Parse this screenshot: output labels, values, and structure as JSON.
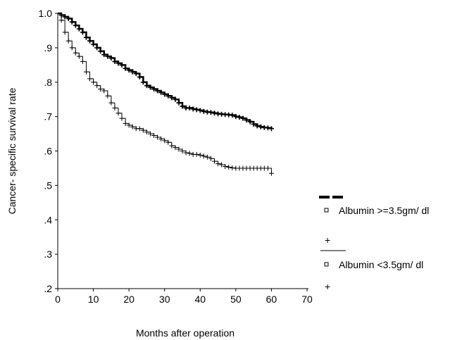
{
  "chart_data": {
    "type": "line",
    "subtype": "kaplan-meier-step",
    "title": "",
    "xlabel": "Months after operation",
    "ylabel": "Cancer- specific survival rate",
    "xlim": [
      0,
      70
    ],
    "ylim": [
      0.2,
      1.0
    ],
    "x_ticks": [
      0,
      10,
      20,
      30,
      40,
      50,
      60,
      70
    ],
    "x_tick_labels": [
      "0",
      "10",
      "20",
      "30",
      "40",
      "50",
      "60",
      "70"
    ],
    "y_ticks": [
      0.2,
      0.3,
      0.4,
      0.5,
      0.6,
      0.7,
      0.8,
      0.9,
      1.0
    ],
    "y_tick_labels": [
      ".2",
      ".3",
      ".4",
      ".5",
      ".6",
      ".7",
      ".8",
      ".9",
      "1.0"
    ],
    "grid": false,
    "legend_position": "right",
    "series": [
      {
        "name": "Albumin >=3.5gm/dl",
        "line_style": "thick",
        "color": "#000000",
        "x": [
          0,
          1,
          2,
          3,
          4,
          5,
          6,
          7,
          8,
          9,
          10,
          11,
          12,
          13,
          14,
          15,
          16,
          17,
          18,
          19,
          20,
          21,
          22,
          23,
          24,
          25,
          26,
          27,
          28,
          29,
          30,
          31,
          32,
          33,
          34,
          35,
          36,
          37,
          38,
          39,
          40,
          41,
          42,
          43,
          44,
          45,
          46,
          47,
          48,
          49,
          50,
          51,
          52,
          53,
          54,
          55,
          56,
          57,
          58,
          59,
          60
        ],
        "y": [
          1.0,
          0.995,
          0.99,
          0.985,
          0.975,
          0.965,
          0.955,
          0.945,
          0.93,
          0.92,
          0.91,
          0.9,
          0.89,
          0.88,
          0.875,
          0.87,
          0.86,
          0.855,
          0.85,
          0.84,
          0.835,
          0.83,
          0.825,
          0.815,
          0.8,
          0.79,
          0.785,
          0.78,
          0.775,
          0.77,
          0.765,
          0.76,
          0.755,
          0.75,
          0.74,
          0.73,
          0.725,
          0.725,
          0.722,
          0.72,
          0.718,
          0.715,
          0.713,
          0.712,
          0.71,
          0.708,
          0.707,
          0.706,
          0.705,
          0.704,
          0.7,
          0.698,
          0.695,
          0.69,
          0.685,
          0.678,
          0.673,
          0.67,
          0.668,
          0.667,
          0.665
        ]
      },
      {
        "name": "Albumin <3.5gm/dl",
        "line_style": "thin",
        "color": "#000000",
        "x": [
          0,
          1,
          2,
          3,
          4,
          5,
          6,
          7,
          8,
          9,
          10,
          11,
          12,
          13,
          14,
          15,
          16,
          17,
          18,
          19,
          20,
          21,
          22,
          23,
          24,
          25,
          26,
          27,
          28,
          29,
          30,
          31,
          32,
          33,
          34,
          35,
          36,
          37,
          38,
          39,
          40,
          41,
          42,
          43,
          44,
          45,
          46,
          47,
          48,
          49,
          50,
          51,
          52,
          53,
          54,
          55,
          56,
          57,
          58,
          59,
          60
        ],
        "y": [
          1.0,
          0.98,
          0.945,
          0.92,
          0.9,
          0.885,
          0.875,
          0.86,
          0.83,
          0.81,
          0.8,
          0.79,
          0.78,
          0.775,
          0.76,
          0.74,
          0.725,
          0.71,
          0.695,
          0.68,
          0.675,
          0.67,
          0.665,
          0.665,
          0.66,
          0.655,
          0.65,
          0.645,
          0.64,
          0.635,
          0.63,
          0.625,
          0.615,
          0.61,
          0.605,
          0.6,
          0.595,
          0.593,
          0.59,
          0.59,
          0.588,
          0.585,
          0.582,
          0.578,
          0.57,
          0.563,
          0.56,
          0.555,
          0.553,
          0.551,
          0.55,
          0.55,
          0.55,
          0.55,
          0.55,
          0.55,
          0.55,
          0.55,
          0.55,
          0.55,
          0.535
        ]
      }
    ]
  },
  "legend": {
    "items": [
      {
        "label": "Albumin >=3.5gm/ dl",
        "line_style": "thick-dash",
        "symbol": "□",
        "censor": "+"
      },
      {
        "label": "Albumin <3.5gm/ dl",
        "line_style": "thin",
        "symbol": "□",
        "censor": "+"
      }
    ]
  }
}
